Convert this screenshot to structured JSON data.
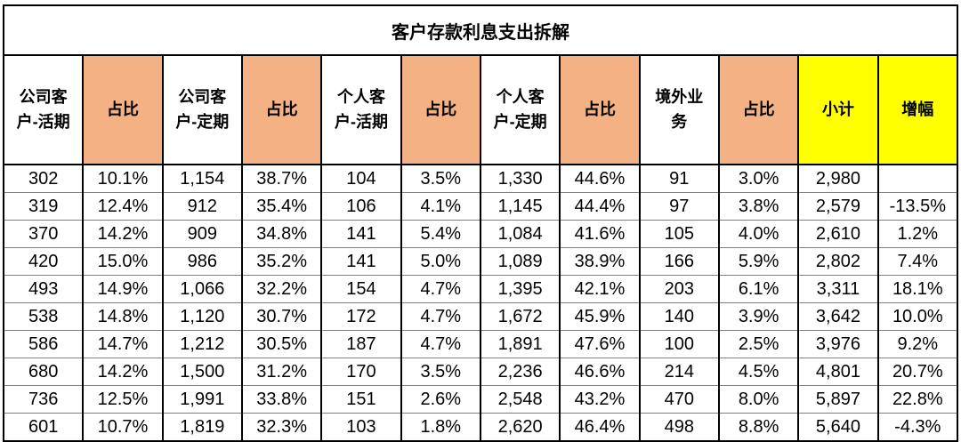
{
  "colors": {
    "orange": "#F4B183",
    "yellow": "#FFFF00",
    "grid_black": "#000000",
    "row_line_gray": "#808080"
  },
  "chart_data": {
    "type": "table",
    "title": "客户存款利息支出拆解",
    "columns": [
      {
        "label": "公司客户-活期",
        "bg": "white"
      },
      {
        "label": "占比",
        "bg": "orange"
      },
      {
        "label": "公司客户-定期",
        "bg": "white"
      },
      {
        "label": "占比",
        "bg": "orange"
      },
      {
        "label": "个人客户-活期",
        "bg": "white"
      },
      {
        "label": "占比",
        "bg": "orange"
      },
      {
        "label": "个人客户-定期",
        "bg": "white"
      },
      {
        "label": "占比",
        "bg": "orange"
      },
      {
        "label": "境外业务",
        "bg": "white"
      },
      {
        "label": "占比",
        "bg": "orange"
      },
      {
        "label": "小计",
        "bg": "yellow"
      },
      {
        "label": "增幅",
        "bg": "yellow"
      }
    ],
    "rows": [
      [
        "302",
        "10.1%",
        "1,154",
        "38.7%",
        "104",
        "3.5%",
        "1,330",
        "44.6%",
        "91",
        "3.0%",
        "2,980",
        ""
      ],
      [
        "319",
        "12.4%",
        "912",
        "35.4%",
        "106",
        "4.1%",
        "1,145",
        "44.4%",
        "97",
        "3.8%",
        "2,579",
        "-13.5%"
      ],
      [
        "370",
        "14.2%",
        "909",
        "34.8%",
        "141",
        "5.4%",
        "1,084",
        "41.6%",
        "105",
        "4.0%",
        "2,610",
        "1.2%"
      ],
      [
        "420",
        "15.0%",
        "986",
        "35.2%",
        "141",
        "5.0%",
        "1,089",
        "38.9%",
        "166",
        "5.9%",
        "2,802",
        "7.4%"
      ],
      [
        "493",
        "14.9%",
        "1,066",
        "32.2%",
        "154",
        "4.7%",
        "1,395",
        "42.1%",
        "203",
        "6.1%",
        "3,311",
        "18.1%"
      ],
      [
        "538",
        "14.8%",
        "1,120",
        "30.7%",
        "172",
        "4.7%",
        "1,672",
        "45.9%",
        "140",
        "3.9%",
        "3,642",
        "10.0%"
      ],
      [
        "586",
        "14.7%",
        "1,212",
        "30.5%",
        "187",
        "4.7%",
        "1,891",
        "47.6%",
        "100",
        "2.5%",
        "3,976",
        "9.2%"
      ],
      [
        "680",
        "14.2%",
        "1,500",
        "31.2%",
        "170",
        "3.5%",
        "2,236",
        "46.6%",
        "214",
        "4.5%",
        "4,801",
        "20.7%"
      ],
      [
        "736",
        "12.5%",
        "1,991",
        "33.8%",
        "151",
        "2.6%",
        "2,548",
        "43.2%",
        "470",
        "8.0%",
        "5,897",
        "22.8%"
      ],
      [
        "601",
        "10.7%",
        "1,819",
        "32.3%",
        "103",
        "1.8%",
        "2,620",
        "46.4%",
        "498",
        "8.8%",
        "5,640",
        "-4.3%"
      ]
    ]
  }
}
